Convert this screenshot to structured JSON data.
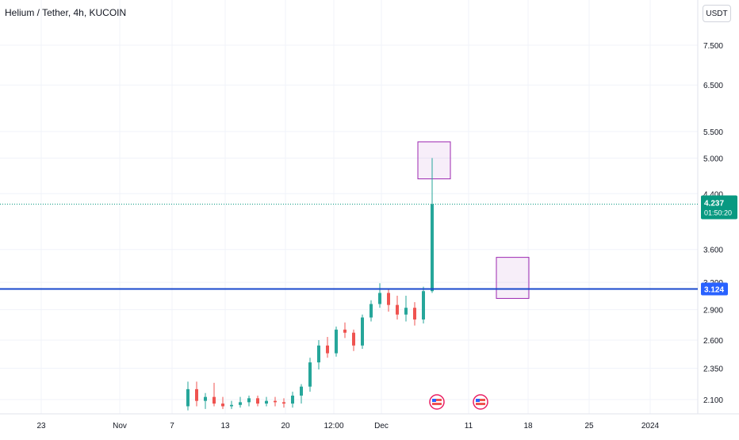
{
  "header": {
    "symbol_title": "Helium / Tether, 4h, KUCOIN",
    "currency": "USDT"
  },
  "colors": {
    "up": "#26a69a",
    "down": "#ef5350",
    "last_price_bg": "#089981",
    "support_line": "#1848cc",
    "support_badge": "#2962ff",
    "box_stroke": "#9c27b0",
    "box_fill": "rgba(156,39,176,0.08)",
    "grid": "#f0f3fa",
    "axis_text": "#131722"
  },
  "chart_data": {
    "type": "candlestick",
    "title": "Helium / Tether, 4h, KUCOIN",
    "y_axis": {
      "scale": "log",
      "ticks": [
        2.1,
        2.35,
        2.6,
        2.9,
        3.2,
        3.6,
        4.4,
        5.0,
        5.5,
        6.5,
        7.5
      ],
      "tick_labels": [
        "2.100",
        "2.350",
        "2.600",
        "2.900",
        "3.200",
        "3.600",
        "4.400",
        "5.000",
        "5.500",
        "6.500",
        "7.500"
      ],
      "unit": "USDT"
    },
    "x_axis": {
      "tick_labels": [
        "23",
        "Nov",
        "7",
        "13",
        "20",
        "12:00",
        "Dec",
        "11",
        "18",
        "25",
        "2024"
      ]
    },
    "last_price": {
      "value": 4.237,
      "label": "4.237",
      "countdown": "01:50:20"
    },
    "support_level": {
      "value": 3.124,
      "label": "3.124"
    },
    "boxes": [
      {
        "name": "resistance-zone",
        "low": 4.64,
        "high": 5.3,
        "start": "Dec 5",
        "end": "Dec 8"
      },
      {
        "name": "target-zone",
        "low": 3.02,
        "high": 3.5,
        "start": "Dec 14",
        "end": "Dec 17"
      }
    ],
    "grid": true,
    "legend": "none",
    "event_markers": [
      {
        "icon": "us-flag-icon",
        "date": "Dec 7"
      },
      {
        "icon": "us-flag-icon",
        "date": "Dec 12"
      }
    ],
    "candles": [
      {
        "date": "Nov 9",
        "o": 2.05,
        "h": 2.24,
        "l": 2.02,
        "c": 2.18
      },
      {
        "date": "Nov 10",
        "o": 2.18,
        "h": 2.24,
        "l": 2.05,
        "c": 2.09
      },
      {
        "date": "Nov 11",
        "o": 2.09,
        "h": 2.15,
        "l": 2.03,
        "c": 2.12
      },
      {
        "date": "Nov 12",
        "o": 2.12,
        "h": 2.23,
        "l": 2.05,
        "c": 2.07
      },
      {
        "date": "Nov 13",
        "o": 2.07,
        "h": 2.12,
        "l": 2.03,
        "c": 2.05
      },
      {
        "date": "Nov 14",
        "o": 2.05,
        "h": 2.09,
        "l": 2.03,
        "c": 2.06
      },
      {
        "date": "Nov 15",
        "o": 2.06,
        "h": 2.12,
        "l": 2.04,
        "c": 2.08
      },
      {
        "date": "Nov 16",
        "o": 2.08,
        "h": 2.13,
        "l": 2.05,
        "c": 2.11
      },
      {
        "date": "Nov 17",
        "o": 2.11,
        "h": 2.13,
        "l": 2.05,
        "c": 2.07
      },
      {
        "date": "Nov 18",
        "o": 2.07,
        "h": 2.12,
        "l": 2.05,
        "c": 2.09
      },
      {
        "date": "Nov 19",
        "o": 2.09,
        "h": 2.12,
        "l": 2.05,
        "c": 2.08
      },
      {
        "date": "Nov 20",
        "o": 2.08,
        "h": 2.11,
        "l": 2.04,
        "c": 2.07
      },
      {
        "date": "Nov 21",
        "o": 2.07,
        "h": 2.16,
        "l": 2.04,
        "c": 2.13
      },
      {
        "date": "Nov 22",
        "o": 2.13,
        "h": 2.22,
        "l": 2.07,
        "c": 2.2
      },
      {
        "date": "Nov 23",
        "o": 2.2,
        "h": 2.44,
        "l": 2.16,
        "c": 2.4
      },
      {
        "date": "Nov 24",
        "o": 2.4,
        "h": 2.6,
        "l": 2.34,
        "c": 2.55
      },
      {
        "date": "Nov 25",
        "o": 2.55,
        "h": 2.63,
        "l": 2.44,
        "c": 2.48
      },
      {
        "date": "Nov 26",
        "o": 2.48,
        "h": 2.73,
        "l": 2.45,
        "c": 2.7
      },
      {
        "date": "Nov 27",
        "o": 2.7,
        "h": 2.77,
        "l": 2.62,
        "c": 2.67
      },
      {
        "date": "Nov 28",
        "o": 2.67,
        "h": 2.7,
        "l": 2.5,
        "c": 2.55
      },
      {
        "date": "Nov 29",
        "o": 2.55,
        "h": 2.85,
        "l": 2.52,
        "c": 2.82
      },
      {
        "date": "Nov 30",
        "o": 2.82,
        "h": 3.0,
        "l": 2.78,
        "c": 2.96
      },
      {
        "date": "Dec 1",
        "o": 2.96,
        "h": 3.19,
        "l": 2.92,
        "c": 3.08
      },
      {
        "date": "Dec 2",
        "o": 3.08,
        "h": 3.12,
        "l": 2.88,
        "c": 2.95
      },
      {
        "date": "Dec 3",
        "o": 2.95,
        "h": 3.05,
        "l": 2.8,
        "c": 2.85
      },
      {
        "date": "Dec 4",
        "o": 2.85,
        "h": 3.05,
        "l": 2.78,
        "c": 2.92
      },
      {
        "date": "Dec 5",
        "o": 2.92,
        "h": 2.98,
        "l": 2.74,
        "c": 2.8
      },
      {
        "date": "Dec 6",
        "o": 2.8,
        "h": 3.15,
        "l": 2.76,
        "c": 3.1
      },
      {
        "date": "Dec 7",
        "o": 3.1,
        "h": 5.0,
        "l": 3.08,
        "c": 4.237
      }
    ]
  }
}
